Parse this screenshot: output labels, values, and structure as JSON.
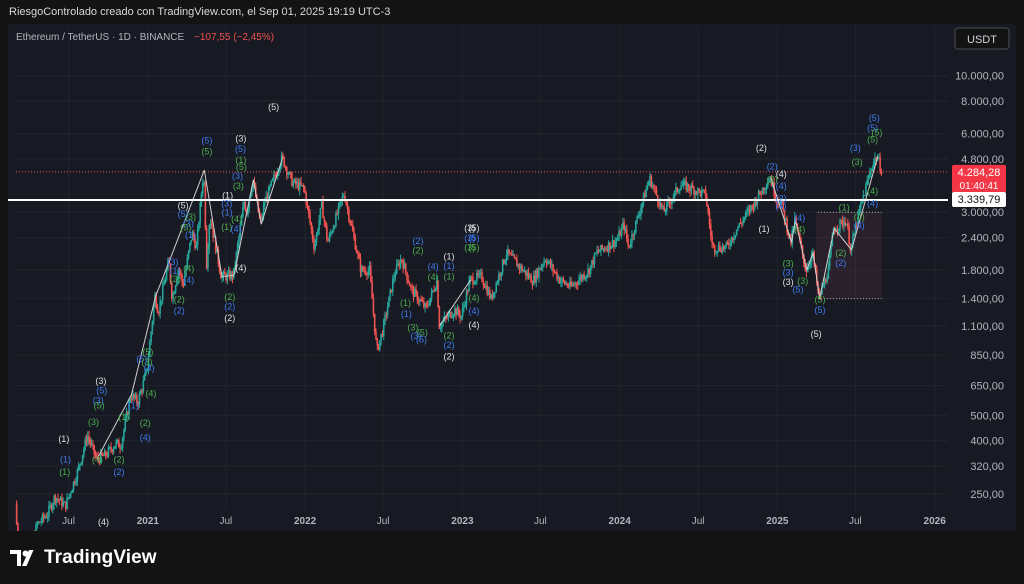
{
  "header": {
    "attribution": "RiesgoControlado creado con TradingView.com, el Sep 01, 2025 19:19 UTC-3"
  },
  "footer": {
    "brand": "TradingView"
  },
  "colors": {
    "up": "#26a69a",
    "down": "#ef5350",
    "background": "#181a23",
    "page": "#131313",
    "label_white": "#e0e0e0",
    "label_blue": "#3d7bf0",
    "label_green": "#4caf50"
  },
  "chart_data": {
    "type": "candlestick",
    "symbol_line": {
      "name": "Ethereum / TetherUS · 1D · BINANCE",
      "change": "−107,55 (−2,45%)"
    },
    "currency_button": "USDT",
    "price_scale": "log",
    "y_range": [
      215,
      13000
    ],
    "x_range": [
      "2020-03-01",
      "2026-02-01"
    ],
    "y_ticks": [
      "10.000,00",
      "8.000,00",
      "6.000,00",
      "4.800,00",
      "3.000,00",
      "2.400,00",
      "1.800,00",
      "1.400,00",
      "1.100,00",
      "850,00",
      "650,00",
      "500,00",
      "400,00",
      "320,00",
      "250,00"
    ],
    "x_ticks": [
      {
        "label": "Jul",
        "date": "2020-07-01"
      },
      {
        "label": "2021",
        "date": "2021-01-01"
      },
      {
        "label": "Jul",
        "date": "2021-07-01"
      },
      {
        "label": "2022",
        "date": "2022-01-01"
      },
      {
        "label": "Jul",
        "date": "2022-07-01"
      },
      {
        "label": "2023",
        "date": "2023-01-01"
      },
      {
        "label": "Jul",
        "date": "2023-07-01"
      },
      {
        "label": "2024",
        "date": "2024-01-01"
      },
      {
        "label": "Jul",
        "date": "2024-07-01"
      },
      {
        "label": "2025",
        "date": "2025-01-01"
      },
      {
        "label": "Jul",
        "date": "2025-07-01"
      },
      {
        "label": "2026",
        "date": "2026-01-01"
      }
    ],
    "last_price": {
      "value": 4284.28,
      "label": "4.284,28",
      "countdown": "01:40:41"
    },
    "horizontal_level": {
      "value": 3339.79,
      "label": "3.339,79"
    },
    "price_path": [
      [
        "2020-03-01",
        230
      ],
      [
        "2020-03-13",
        110
      ],
      [
        "2020-04-20",
        190
      ],
      [
        "2020-05-15",
        210
      ],
      [
        "2020-06-01",
        245
      ],
      [
        "2020-06-25",
        225
      ],
      [
        "2020-07-25",
        310
      ],
      [
        "2020-08-15",
        420
      ],
      [
        "2020-09-05",
        340
      ],
      [
        "2020-09-25",
        350
      ],
      [
        "2020-10-20",
        390
      ],
      [
        "2020-11-01",
        385
      ],
      [
        "2020-11-24",
        600
      ],
      [
        "2020-12-10",
        560
      ],
      [
        "2020-12-31",
        740
      ],
      [
        "2021-01-19",
        1430
      ],
      [
        "2021-01-27",
        1250
      ],
      [
        "2021-02-20",
        1950
      ],
      [
        "2021-02-28",
        1400
      ],
      [
        "2021-03-15",
        1850
      ],
      [
        "2021-03-25",
        1570
      ],
      [
        "2021-04-15",
        2500
      ],
      [
        "2021-04-25",
        2200
      ],
      [
        "2021-05-12",
        4350
      ],
      [
        "2021-05-19",
        1900
      ],
      [
        "2021-05-26",
        2900
      ],
      [
        "2021-06-22",
        1700
      ],
      [
        "2021-07-20",
        1720
      ],
      [
        "2021-08-14",
        3300
      ],
      [
        "2021-08-20",
        3000
      ],
      [
        "2021-09-03",
        4000
      ],
      [
        "2021-09-21",
        2700
      ],
      [
        "2021-10-01",
        3300
      ],
      [
        "2021-11-10",
        4860
      ],
      [
        "2021-11-28",
        4100
      ],
      [
        "2021-12-04",
        3900
      ],
      [
        "2021-12-31",
        3700
      ],
      [
        "2022-01-24",
        2200
      ],
      [
        "2022-02-10",
        3200
      ],
      [
        "2022-02-24",
        2300
      ],
      [
        "2022-04-03",
        3550
      ],
      [
        "2022-05-12",
        1800
      ],
      [
        "2022-06-01",
        1800
      ],
      [
        "2022-06-18",
        880
      ],
      [
        "2022-07-01",
        1050
      ],
      [
        "2022-07-29",
        1750
      ],
      [
        "2022-08-14",
        2000
      ],
      [
        "2022-09-07",
        1500
      ],
      [
        "2022-09-15",
        1450
      ],
      [
        "2022-10-10",
        1280
      ],
      [
        "2022-11-05",
        1650
      ],
      [
        "2022-11-09",
        1100
      ],
      [
        "2022-12-15",
        1270
      ],
      [
        "2022-12-31",
        1200
      ],
      [
        "2023-01-20",
        1650
      ],
      [
        "2023-02-16",
        1700
      ],
      [
        "2023-03-10",
        1400
      ],
      [
        "2023-04-15",
        2100
      ],
      [
        "2023-06-15",
        1640
      ],
      [
        "2023-07-14",
        2000
      ],
      [
        "2023-08-17",
        1650
      ],
      [
        "2023-09-11",
        1550
      ],
      [
        "2023-10-23",
        1800
      ],
      [
        "2023-11-10",
        2100
      ],
      [
        "2023-12-28",
        2350
      ],
      [
        "2024-01-12",
        2700
      ],
      [
        "2024-01-23",
        2200
      ],
      [
        "2024-03-12",
        4050
      ],
      [
        "2024-04-13",
        3000
      ],
      [
        "2024-05-21",
        3800
      ],
      [
        "2024-06-01",
        3800
      ],
      [
        "2024-07-20",
        3500
      ],
      [
        "2024-08-05",
        2200
      ],
      [
        "2024-09-06",
        2200
      ],
      [
        "2024-10-01",
        2600
      ],
      [
        "2024-11-12",
        3300
      ],
      [
        "2024-12-16",
        4100
      ],
      [
        "2025-01-01",
        3350
      ],
      [
        "2025-01-10",
        3300
      ],
      [
        "2025-02-03",
        2300
      ],
      [
        "2025-02-12",
        2800
      ],
      [
        "2025-03-10",
        1800
      ],
      [
        "2025-03-25",
        2100
      ],
      [
        "2025-04-09",
        1400
      ],
      [
        "2025-05-01",
        1800
      ],
      [
        "2025-05-13",
        2600
      ],
      [
        "2025-06-11",
        2800
      ],
      [
        "2025-06-22",
        2150
      ],
      [
        "2025-07-10",
        2950
      ],
      [
        "2025-07-28",
        3800
      ],
      [
        "2025-08-13",
        4700
      ],
      [
        "2025-08-22",
        4900
      ],
      [
        "2025-08-31",
        4390
      ]
    ],
    "wave_labels": [
      {
        "text": "(1)",
        "date": "2020-06-20",
        "price": 395,
        "color": "white"
      },
      {
        "text": "(1)",
        "date": "2020-06-24",
        "price": 330,
        "color": "blue"
      },
      {
        "text": "(1)",
        "date": "2020-06-22",
        "price": 295,
        "color": "green"
      },
      {
        "text": "(4)",
        "date": "2020-09-20",
        "price": 190,
        "color": "white"
      },
      {
        "text": "(3)",
        "date": "2020-09-14",
        "price": 660,
        "color": "white"
      },
      {
        "text": "(5)",
        "date": "2020-09-16",
        "price": 605,
        "color": "blue"
      },
      {
        "text": "(3)",
        "date": "2020-09-08",
        "price": 555,
        "color": "blue"
      },
      {
        "text": "(5)",
        "date": "2020-09-10",
        "price": 530,
        "color": "green"
      },
      {
        "text": "(3)",
        "date": "2020-08-28",
        "price": 460,
        "color": "green"
      },
      {
        "text": "(4)",
        "date": "2020-09-06",
        "price": 330,
        "color": "green"
      },
      {
        "text": "(2)",
        "date": "2020-10-26",
        "price": 330,
        "color": "green"
      },
      {
        "text": "(2)",
        "date": "2020-10-26",
        "price": 295,
        "color": "blue"
      },
      {
        "text": "(1)",
        "date": "2020-11-28",
        "price": 530,
        "color": "blue"
      },
      {
        "text": "(1)",
        "date": "2020-11-06",
        "price": 480,
        "color": "green"
      },
      {
        "text": "(2)",
        "date": "2020-12-26",
        "price": 455,
        "color": "green"
      },
      {
        "text": "(4)",
        "date": "2020-12-26",
        "price": 400,
        "color": "blue"
      },
      {
        "text": "(5)",
        "date": "2020-12-18",
        "price": 800,
        "color": "blue"
      },
      {
        "text": "(5)",
        "date": "2021-01-01",
        "price": 850,
        "color": "green"
      },
      {
        "text": "(3)",
        "date": "2020-12-30",
        "price": 780,
        "color": "green"
      },
      {
        "text": "(4)",
        "date": "2021-01-04",
        "price": 740,
        "color": "blue"
      },
      {
        "text": "(4)",
        "date": "2021-01-08",
        "price": 590,
        "color": "green"
      },
      {
        "text": "(3)",
        "date": "2021-02-28",
        "price": 1880,
        "color": "blue"
      },
      {
        "text": "(1)",
        "date": "2021-03-05",
        "price": 1740,
        "color": "blue"
      },
      {
        "text": "(3)",
        "date": "2021-03-06",
        "price": 1620,
        "color": "green"
      },
      {
        "text": "(2)",
        "date": "2021-03-15",
        "price": 1350,
        "color": "green"
      },
      {
        "text": "(2)",
        "date": "2021-03-15",
        "price": 1230,
        "color": "blue"
      },
      {
        "text": "(4)",
        "date": "2021-04-06",
        "price": 1780,
        "color": "green"
      },
      {
        "text": "(4)",
        "date": "2021-04-06",
        "price": 1610,
        "color": "blue"
      },
      {
        "text": "(5)",
        "date": "2021-03-24",
        "price": 3100,
        "color": "white"
      },
      {
        "text": "(5)",
        "date": "2021-03-24",
        "price": 2870,
        "color": "blue"
      },
      {
        "text": "(3)",
        "date": "2021-04-05",
        "price": 2650,
        "color": "blue"
      },
      {
        "text": "(5)",
        "date": "2021-03-30",
        "price": 2550,
        "color": "green"
      },
      {
        "text": "(1)",
        "date": "2021-04-10",
        "price": 2390,
        "color": "blue"
      },
      {
        "text": "(3)",
        "date": "2021-04-10",
        "price": 2800,
        "color": "green"
      },
      {
        "text": "(5)",
        "date": "2021-05-18",
        "price": 5500,
        "color": "blue"
      },
      {
        "text": "(5)",
        "date": "2021-05-18",
        "price": 5000,
        "color": "green"
      },
      {
        "text": "(1)",
        "date": "2021-07-05",
        "price": 3380,
        "color": "white"
      },
      {
        "text": "(3)",
        "date": "2021-07-03",
        "price": 3150,
        "color": "blue"
      },
      {
        "text": "(1)",
        "date": "2021-07-04",
        "price": 2910,
        "color": "blue"
      },
      {
        "text": "(1)",
        "date": "2021-07-03",
        "price": 2570,
        "color": "green"
      },
      {
        "text": "(2)",
        "date": "2021-07-10",
        "price": 1380,
        "color": "green"
      },
      {
        "text": "(2)",
        "date": "2021-07-10",
        "price": 1270,
        "color": "blue"
      },
      {
        "text": "(2)",
        "date": "2021-07-10",
        "price": 1150,
        "color": "white"
      },
      {
        "text": "(4)",
        "date": "2021-08-05",
        "price": 1790,
        "color": "white"
      },
      {
        "text": "(3)",
        "date": "2021-08-05",
        "price": 5600,
        "color": "white"
      },
      {
        "text": "(5)",
        "date": "2021-08-04",
        "price": 5100,
        "color": "blue"
      },
      {
        "text": "(1)",
        "date": "2021-08-05",
        "price": 4640,
        "color": "green"
      },
      {
        "text": "(5)",
        "date": "2021-08-06",
        "price": 4350,
        "color": "green"
      },
      {
        "text": "(3)",
        "date": "2021-07-28",
        "price": 4020,
        "color": "blue"
      },
      {
        "text": "(3)",
        "date": "2021-07-30",
        "price": 3680,
        "color": "green"
      },
      {
        "text": "(4)",
        "date": "2021-07-26",
        "price": 2750,
        "color": "green"
      },
      {
        "text": "(4)",
        "date": "2021-07-25",
        "price": 2520,
        "color": "blue"
      },
      {
        "text": "(5)",
        "date": "2021-10-20",
        "price": 7400,
        "color": "white"
      },
      {
        "text": "(2)",
        "date": "2022-09-20",
        "price": 2270,
        "color": "blue"
      },
      {
        "text": "(2)",
        "date": "2022-09-20",
        "price": 2080,
        "color": "green"
      },
      {
        "text": "(4)",
        "date": "2022-10-25",
        "price": 1810,
        "color": "blue"
      },
      {
        "text": "(4)",
        "date": "2022-10-25",
        "price": 1650,
        "color": "green"
      },
      {
        "text": "(1)",
        "date": "2022-08-22",
        "price": 1310,
        "color": "green"
      },
      {
        "text": "(1)",
        "date": "2022-08-24",
        "price": 1190,
        "color": "blue"
      },
      {
        "text": "(3)",
        "date": "2022-09-08",
        "price": 1055,
        "color": "green"
      },
      {
        "text": "(5)",
        "date": "2022-09-30",
        "price": 1010,
        "color": "green"
      },
      {
        "text": "(3)",
        "date": "2022-09-15",
        "price": 980,
        "color": "blue"
      },
      {
        "text": "(5)",
        "date": "2022-09-28",
        "price": 950,
        "color": "blue"
      },
      {
        "text": "(1)",
        "date": "2022-12-01",
        "price": 1980,
        "color": "white"
      },
      {
        "text": "(1)",
        "date": "2022-12-01",
        "price": 1820,
        "color": "blue"
      },
      {
        "text": "(1)",
        "date": "2022-12-01",
        "price": 1660,
        "color": "green"
      },
      {
        "text": "(2)",
        "date": "2022-12-01",
        "price": 985,
        "color": "green"
      },
      {
        "text": "(2)",
        "date": "2022-12-01",
        "price": 905,
        "color": "blue"
      },
      {
        "text": "(2)",
        "date": "2022-12-01",
        "price": 820,
        "color": "white"
      },
      {
        "text": "(3)",
        "date": "2023-01-18",
        "price": 2540,
        "color": "white"
      },
      {
        "text": "(5)",
        "date": "2023-01-28",
        "price": 2540,
        "color": "white"
      },
      {
        "text": "(3)",
        "date": "2023-01-18",
        "price": 2330,
        "color": "blue"
      },
      {
        "text": "(5)",
        "date": "2023-01-28",
        "price": 2330,
        "color": "blue"
      },
      {
        "text": "(3)",
        "date": "2023-01-18",
        "price": 2140,
        "color": "green"
      },
      {
        "text": "(5)",
        "date": "2023-01-28",
        "price": 2140,
        "color": "green"
      },
      {
        "text": "(4)",
        "date": "2023-01-28",
        "price": 1370,
        "color": "green"
      },
      {
        "text": "(4)",
        "date": "2023-01-28",
        "price": 1220,
        "color": "blue"
      },
      {
        "text": "(4)",
        "date": "2023-01-28",
        "price": 1080,
        "color": "white"
      },
      {
        "text": "(2)",
        "date": "2024-11-25",
        "price": 5150,
        "color": "white"
      },
      {
        "text": "(2)",
        "date": "2024-12-20",
        "price": 4370,
        "color": "blue"
      },
      {
        "text": "(4)",
        "date": "2025-01-10",
        "price": 4090,
        "color": "white"
      },
      {
        "text": "(2)",
        "date": "2024-12-20",
        "price": 3900,
        "color": "green"
      },
      {
        "text": "(4)",
        "date": "2025-01-10",
        "price": 3690,
        "color": "blue"
      },
      {
        "text": "(2)",
        "date": "2025-01-10",
        "price": 3300,
        "color": "blue"
      },
      {
        "text": "(4)",
        "date": "2025-01-09",
        "price": 3080,
        "color": "blue"
      },
      {
        "text": "(1)",
        "date": "2024-12-01",
        "price": 2520,
        "color": "white"
      },
      {
        "text": "(4)",
        "date": "2025-02-22",
        "price": 2780,
        "color": "blue"
      },
      {
        "text": "(4)",
        "date": "2025-02-22",
        "price": 2510,
        "color": "green"
      },
      {
        "text": "(3)",
        "date": "2025-01-26",
        "price": 1860,
        "color": "green"
      },
      {
        "text": "(3)",
        "date": "2025-01-26",
        "price": 1720,
        "color": "blue"
      },
      {
        "text": "(3)",
        "date": "2025-01-26",
        "price": 1580,
        "color": "white"
      },
      {
        "text": "(3)",
        "date": "2025-03-01",
        "price": 1590,
        "color": "green"
      },
      {
        "text": "(5)",
        "date": "2025-02-18",
        "price": 1480,
        "color": "blue"
      },
      {
        "text": "(5)",
        "date": "2025-04-10",
        "price": 1350,
        "color": "green"
      },
      {
        "text": "(5)",
        "date": "2025-04-10",
        "price": 1235,
        "color": "blue"
      },
      {
        "text": "(5)",
        "date": "2025-04-01",
        "price": 1000,
        "color": "white"
      },
      {
        "text": "(2)",
        "date": "2025-05-28",
        "price": 2040,
        "color": "green"
      },
      {
        "text": "(2)",
        "date": "2025-05-28",
        "price": 1870,
        "color": "blue"
      },
      {
        "text": "(1)",
        "date": "2025-06-05",
        "price": 3050,
        "color": "green"
      },
      {
        "text": "(4)",
        "date": "2025-07-10",
        "price": 2800,
        "color": "green"
      },
      {
        "text": "(4)",
        "date": "2025-07-10",
        "price": 2600,
        "color": "blue"
      },
      {
        "text": "(4)",
        "date": "2025-08-10",
        "price": 3530,
        "color": "green"
      },
      {
        "text": "(4)",
        "date": "2025-08-10",
        "price": 3150,
        "color": "blue"
      },
      {
        "text": "(3)",
        "date": "2025-07-01",
        "price": 5150,
        "color": "blue"
      },
      {
        "text": "(3)",
        "date": "2025-07-05",
        "price": 4550,
        "color": "green"
      },
      {
        "text": "(5)",
        "date": "2025-08-14",
        "price": 6700,
        "color": "blue"
      },
      {
        "text": "(5)",
        "date": "2025-08-10",
        "price": 6150,
        "color": "blue"
      },
      {
        "text": "(5)",
        "date": "2025-08-20",
        "price": 5900,
        "color": "green"
      },
      {
        "text": "(5)",
        "date": "2025-08-10",
        "price": 5550,
        "color": "green"
      }
    ]
  }
}
